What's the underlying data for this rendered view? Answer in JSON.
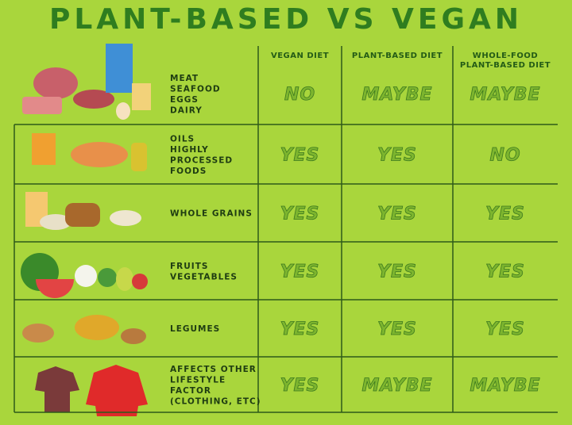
{
  "header": {
    "title": "PLANT-BASED VS VEGAN"
  },
  "table": {
    "columns": [
      "VEGAN DIET",
      "PLANT-BASED DIET",
      [
        "WHOLE-FOOD",
        "PLANT-BASED DIET"
      ]
    ],
    "rows": [
      {
        "label": [
          "MEAT",
          "SEAFOOD",
          "EGGS",
          "DAIRY"
        ],
        "cells": [
          "NO",
          "MAYBE",
          "MAYBE"
        ]
      },
      {
        "label": [
          "OILS",
          "HIGHLY",
          "PROCESSED",
          "FOODS"
        ],
        "cells": [
          "YES",
          "YES",
          "NO"
        ]
      },
      {
        "label": [
          "WHOLE GRAINS"
        ],
        "cells": [
          "YES",
          "YES",
          "YES"
        ]
      },
      {
        "label": [
          "FRUITS",
          "VEGETABLES"
        ],
        "cells": [
          "YES",
          "YES",
          "YES"
        ]
      },
      {
        "label": [
          "LEGUMES"
        ],
        "cells": [
          "YES",
          "YES",
          "YES"
        ]
      },
      {
        "label": [
          "AFFECTS OTHER",
          "LIFESTYLE",
          "FACTOR",
          "(CLOTHING, ETC)"
        ],
        "cells": [
          "YES",
          "MAYBE",
          "MAYBE"
        ]
      }
    ]
  }
}
